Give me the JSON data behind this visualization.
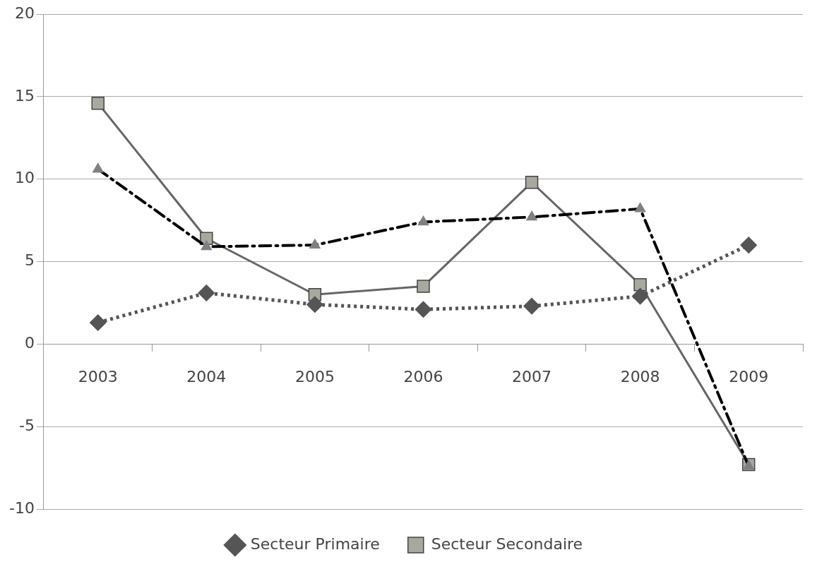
{
  "chart_data": {
    "type": "line",
    "categories": [
      "2003",
      "2004",
      "2005",
      "2006",
      "2007",
      "2008",
      "2009"
    ],
    "series": [
      {
        "name": "Secteur Primaire",
        "color": "#555555",
        "marker": "diamond",
        "line_style": "dotted",
        "values": [
          1.3,
          3.1,
          2.4,
          2.1,
          2.3,
          2.9,
          6.0
        ]
      },
      {
        "name": "Secteur Secondaire",
        "color": "#666666",
        "marker": "square",
        "line_style": "solid",
        "values": [
          14.6,
          6.4,
          3.0,
          3.5,
          9.8,
          3.6,
          -7.3
        ]
      },
      {
        "color": "#808080",
        "marker": "triangle",
        "line_style": "dashed",
        "values": [
          10.6,
          5.9,
          6.0,
          7.4,
          7.7,
          8.2,
          -7.4
        ]
      }
    ],
    "ylim": [
      -10,
      20
    ],
    "yticks": [
      -10,
      -5,
      0,
      5,
      10,
      15,
      20
    ],
    "grid": "y",
    "legend": "bottom"
  }
}
